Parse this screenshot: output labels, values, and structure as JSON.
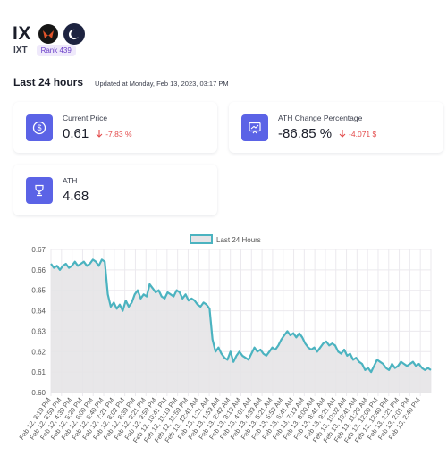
{
  "header": {
    "title": "IX",
    "symbol": "IXT",
    "rank": "Rank 439",
    "logo_icon": "ix-logo-icon",
    "theme_icon": "moon-icon"
  },
  "period": {
    "title": "Last 24 hours",
    "updated": "Updated at Monday, Feb 13, 2023, 03:17 PM"
  },
  "cards": {
    "price": {
      "label": "Current Price",
      "value": "0.61",
      "change": "-7.83 %"
    },
    "ath_change": {
      "label": "ATH Change Percentage",
      "value": "-86.85 %",
      "change": "-4.071 $"
    },
    "ath": {
      "label": "ATH",
      "value": "4.68"
    }
  },
  "colors": {
    "accent": "#5b63e6",
    "negative": "#e34a4a",
    "line": "#4bb3c0",
    "fill": "#e6e4e7"
  },
  "chart_data": {
    "type": "area",
    "legend": "Last 24 Hours",
    "legend_position": "top-center",
    "ylim": [
      0.6,
      0.67
    ],
    "yticks": [
      "0.60",
      "0.61",
      "0.62",
      "0.63",
      "0.64",
      "0.65",
      "0.66",
      "0.67"
    ],
    "grid": true,
    "xticks": [
      "Feb 12, 3:19 PM",
      "Feb 12, 3:59 PM",
      "Feb 12, 4:39 PM",
      "Feb 12, 5:20 PM",
      "Feb 12, 6:00 PM",
      "Feb 12, 6:40 PM",
      "Feb 12, 7:21 PM",
      "Feb 12, 8:02 PM",
      "Feb 12, 8:39 PM",
      "Feb 12, 9:21 PM",
      "Feb 12, 9:59 PM",
      "Feb 12, 10:41 PM",
      "Feb 12, 11:19 PM",
      "Feb 12, 11:59 PM",
      "Feb 13, 12:41 AM",
      "Feb 13, 1:21 AM",
      "Feb 13, 1:59 AM",
      "Feb 13, 2:42 AM",
      "Feb 13, 3:19 AM",
      "Feb 13, 4:01 AM",
      "Feb 13, 4:39 AM",
      "Feb 13, 5:21 AM",
      "Feb 13, 5:59 AM",
      "Feb 13, 6:41 AM",
      "Feb 13, 7:19 AM",
      "Feb 13, 8:00 AM",
      "Feb 13, 8:41 AM",
      "Feb 13, 9:21 AM",
      "Feb 13, 10:02 AM",
      "Feb 13, 10:41 AM",
      "Feb 13, 11:20 AM",
      "Feb 13, 12:00 PM",
      "Feb 13, 12:40 PM",
      "Feb 13, 1:21 PM",
      "Feb 13, 2:01 PM",
      "Feb 13, 2:40 PM"
    ],
    "values": [
      0.663,
      0.661,
      0.662,
      0.66,
      0.662,
      0.663,
      0.661,
      0.662,
      0.664,
      0.662,
      0.663,
      0.664,
      0.662,
      0.663,
      0.665,
      0.664,
      0.662,
      0.665,
      0.664,
      0.648,
      0.642,
      0.644,
      0.641,
      0.643,
      0.64,
      0.645,
      0.642,
      0.644,
      0.648,
      0.65,
      0.646,
      0.648,
      0.647,
      0.653,
      0.651,
      0.649,
      0.65,
      0.647,
      0.646,
      0.649,
      0.648,
      0.647,
      0.65,
      0.649,
      0.646,
      0.648,
      0.645,
      0.646,
      0.645,
      0.643,
      0.642,
      0.644,
      0.643,
      0.641,
      0.626,
      0.62,
      0.622,
      0.619,
      0.617,
      0.616,
      0.62,
      0.615,
      0.618,
      0.62,
      0.618,
      0.617,
      0.616,
      0.619,
      0.622,
      0.62,
      0.621,
      0.619,
      0.618,
      0.62,
      0.622,
      0.621,
      0.623,
      0.626,
      0.628,
      0.63,
      0.628,
      0.629,
      0.627,
      0.629,
      0.627,
      0.624,
      0.622,
      0.621,
      0.622,
      0.62,
      0.622,
      0.624,
      0.625,
      0.623,
      0.624,
      0.623,
      0.62,
      0.619,
      0.621,
      0.618,
      0.619,
      0.616,
      0.617,
      0.615,
      0.614,
      0.611,
      0.612,
      0.61,
      0.613,
      0.616,
      0.615,
      0.614,
      0.612,
      0.611,
      0.614,
      0.612,
      0.613,
      0.615,
      0.614,
      0.613,
      0.614,
      0.615,
      0.613,
      0.614,
      0.612,
      0.611,
      0.612,
      0.611
    ]
  }
}
